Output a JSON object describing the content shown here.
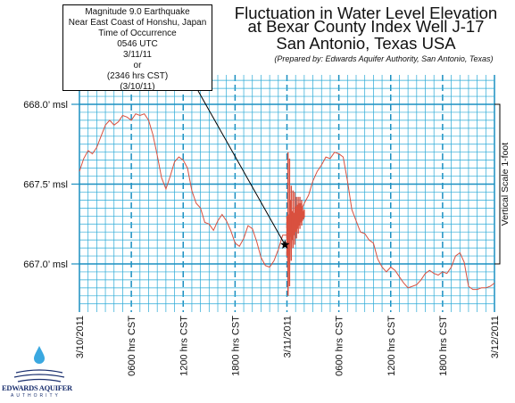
{
  "title_lines": [
    "Fluctuation in Water Level Elevation",
    "at Bexar County Index Well J-17",
    "San Antonio, Texas USA"
  ],
  "subtitle": "(Prepared by: Edwards Aquifer Authority, San Antonio, Texas)",
  "callout_lines": [
    "Magnitude 9.0 Earthquake",
    "Near East Coast of Honshu, Japan",
    "Time of Occurrence",
    "0546 UTC",
    "3/11/11",
    "or",
    "(2346 hrs CST)",
    "(3/10/11)"
  ],
  "scale_label": "Vertical Scale 1-foot",
  "logo": {
    "line1": "EDWARDS AQUIFER",
    "line2": "AUTHORITY"
  },
  "colors": {
    "grid_minor": "#29a9d6",
    "grid_major": "#1b8fc0",
    "trace": "#d9503f",
    "callout_line": "#000000"
  },
  "chart_data": {
    "type": "line",
    "title": "Fluctuation in Water Level Elevation at Bexar County Index Well J-17 San Antonio, Texas USA",
    "xlabel": "",
    "ylabel": "",
    "x_unit": "hours from 3/10/2011 00:00 CST",
    "xlim": [
      0,
      48
    ],
    "ylim": [
      666.75,
      668.15
    ],
    "grid": true,
    "x_ticks": [
      {
        "x": 0,
        "label": "3/10/2011"
      },
      {
        "x": 6,
        "label": "0600 hrs CST"
      },
      {
        "x": 12,
        "label": "1200 hrs CST"
      },
      {
        "x": 18,
        "label": "1800 hrs CST"
      },
      {
        "x": 24,
        "label": "3/11/2011"
      },
      {
        "x": 30,
        "label": "0600 hrs CST"
      },
      {
        "x": 36,
        "label": "1200 hrs CST"
      },
      {
        "x": 42,
        "label": "1800 hrs CST"
      },
      {
        "x": 48,
        "label": "3/12/2011"
      }
    ],
    "y_ticks": [
      {
        "y": 668.0,
        "label": "668.0’ msl"
      },
      {
        "y": 667.5,
        "label": "667.5’ msl"
      },
      {
        "y": 667.0,
        "label": "667.0’ msl"
      }
    ],
    "series": [
      {
        "points": [
          [
            0.0,
            667.58
          ],
          [
            0.5,
            667.66
          ],
          [
            1.0,
            667.71
          ],
          [
            1.5,
            667.69
          ],
          [
            2.0,
            667.73
          ],
          [
            2.5,
            667.8
          ],
          [
            3.0,
            667.87
          ],
          [
            3.5,
            667.9
          ],
          [
            4.0,
            667.87
          ],
          [
            4.5,
            667.89
          ],
          [
            5.0,
            667.93
          ],
          [
            5.5,
            667.92
          ],
          [
            6.0,
            667.9
          ],
          [
            6.5,
            667.94
          ],
          [
            7.0,
            667.93
          ],
          [
            7.5,
            667.94
          ],
          [
            8.0,
            667.9
          ],
          [
            8.5,
            667.81
          ],
          [
            9.0,
            667.68
          ],
          [
            9.5,
            667.54
          ],
          [
            10.0,
            667.47
          ],
          [
            10.5,
            667.55
          ],
          [
            11.0,
            667.64
          ],
          [
            11.5,
            667.67
          ],
          [
            12.0,
            667.65
          ],
          [
            12.5,
            667.6
          ],
          [
            13.0,
            667.46
          ],
          [
            13.5,
            667.38
          ],
          [
            14.0,
            667.35
          ],
          [
            14.5,
            667.26
          ],
          [
            15.0,
            667.25
          ],
          [
            15.5,
            667.21
          ],
          [
            16.0,
            667.27
          ],
          [
            16.5,
            667.31
          ],
          [
            17.0,
            667.27
          ],
          [
            17.5,
            667.21
          ],
          [
            18.0,
            667.13
          ],
          [
            18.5,
            667.11
          ],
          [
            19.0,
            667.16
          ],
          [
            19.5,
            667.24
          ],
          [
            20.0,
            667.22
          ],
          [
            20.5,
            667.14
          ],
          [
            21.0,
            667.04
          ],
          [
            21.5,
            666.99
          ],
          [
            22.0,
            666.98
          ],
          [
            22.5,
            667.02
          ],
          [
            23.0,
            667.09
          ],
          [
            23.5,
            667.18
          ],
          [
            24.0,
            667.18
          ],
          [
            24.5,
            667.25
          ],
          [
            25.0,
            667.29
          ],
          [
            25.5,
            667.32
          ],
          [
            26.0,
            667.38
          ],
          [
            26.5,
            667.43
          ],
          [
            27.0,
            667.52
          ],
          [
            27.5,
            667.58
          ],
          [
            28.0,
            667.62
          ],
          [
            28.5,
            667.67
          ],
          [
            29.0,
            667.66
          ],
          [
            29.5,
            667.7
          ],
          [
            30.0,
            667.69
          ],
          [
            30.5,
            667.67
          ],
          [
            31.0,
            667.52
          ],
          [
            31.5,
            667.34
          ],
          [
            32.0,
            667.27
          ],
          [
            32.5,
            667.2
          ],
          [
            33.0,
            667.19
          ],
          [
            33.5,
            667.15
          ],
          [
            34.0,
            667.13
          ],
          [
            34.5,
            667.03
          ],
          [
            35.0,
            666.98
          ],
          [
            35.5,
            666.95
          ],
          [
            36.0,
            666.98
          ],
          [
            36.5,
            666.96
          ],
          [
            37.0,
            666.92
          ],
          [
            37.5,
            666.88
          ],
          [
            38.0,
            666.85
          ],
          [
            38.5,
            666.86
          ],
          [
            39.0,
            666.87
          ],
          [
            39.5,
            666.9
          ],
          [
            40.0,
            666.94
          ],
          [
            40.5,
            666.96
          ],
          [
            41.0,
            666.94
          ],
          [
            41.5,
            666.93
          ],
          [
            42.0,
            666.95
          ],
          [
            42.5,
            666.94
          ],
          [
            43.0,
            666.98
          ],
          [
            43.5,
            667.05
          ],
          [
            44.0,
            667.07
          ],
          [
            44.5,
            667.01
          ],
          [
            45.0,
            666.86
          ],
          [
            45.5,
            666.84
          ],
          [
            46.0,
            666.84
          ],
          [
            46.5,
            666.85
          ],
          [
            47.0,
            666.85
          ],
          [
            47.5,
            666.86
          ],
          [
            48.0,
            666.88
          ]
        ],
        "seismic": {
          "x_range": [
            24.0,
            26.1
          ],
          "spikes": [
            [
              24.0,
              667.05,
              667.3
            ],
            [
              24.12,
              666.8,
              667.7
            ],
            [
              24.22,
              667.2,
              667.31
            ],
            [
              24.3,
              666.86,
              667.66
            ],
            [
              24.4,
              667.17,
              667.4
            ],
            [
              24.5,
              667.02,
              667.49
            ],
            [
              24.6,
              667.15,
              667.33
            ],
            [
              24.7,
              667.1,
              667.46
            ],
            [
              24.8,
              667.18,
              667.32
            ],
            [
              24.9,
              667.12,
              667.45
            ],
            [
              25.0,
              667.2,
              667.36
            ],
            [
              25.1,
              667.16,
              667.42
            ],
            [
              25.2,
              667.22,
              667.37
            ],
            [
              25.3,
              667.19,
              667.42
            ],
            [
              25.4,
              667.24,
              667.38
            ],
            [
              25.5,
              667.22,
              667.42
            ],
            [
              25.6,
              667.26,
              667.38
            ],
            [
              25.7,
              667.24,
              667.4
            ],
            [
              25.8,
              667.27,
              667.36
            ],
            [
              25.9,
              667.28,
              667.33
            ],
            [
              26.0,
              667.29,
              667.34
            ]
          ]
        }
      }
    ],
    "event_marker": {
      "x": 23.77,
      "y": 667.12,
      "symbol": "star"
    },
    "scale_bar": {
      "y_from": 667.0,
      "y_to": 668.0
    }
  }
}
